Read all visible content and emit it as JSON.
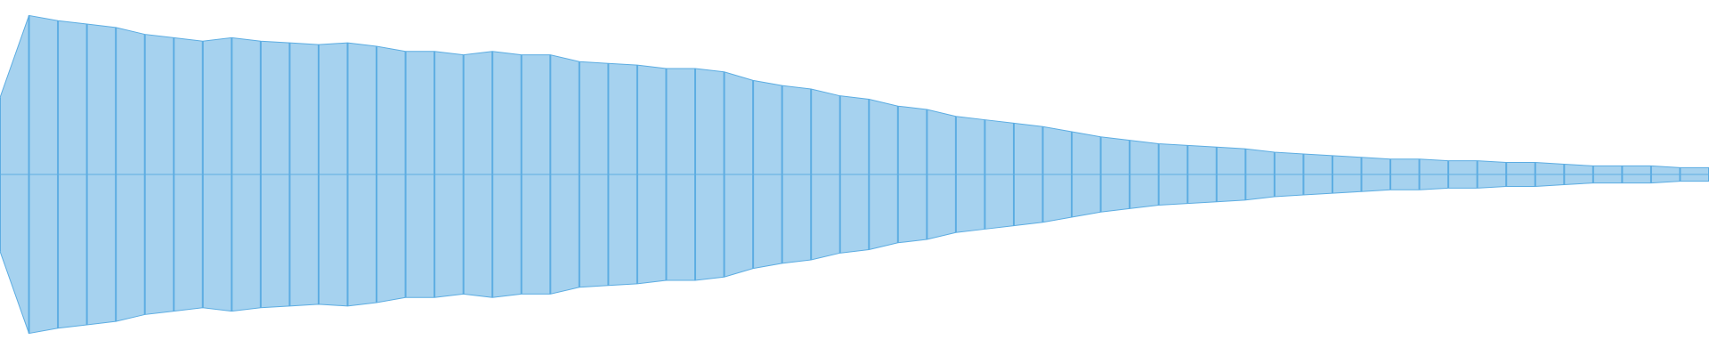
{
  "chart_data": {
    "type": "waveform",
    "color": "#5dade2",
    "ylim": [
      -1,
      1
    ],
    "values": [
      0.45,
      0.93,
      0.9,
      0.88,
      0.86,
      0.82,
      0.8,
      0.78,
      0.8,
      0.78,
      0.77,
      0.76,
      0.77,
      0.75,
      0.72,
      0.72,
      0.7,
      0.72,
      0.7,
      0.7,
      0.66,
      0.65,
      0.64,
      0.62,
      0.62,
      0.6,
      0.55,
      0.52,
      0.5,
      0.46,
      0.44,
      0.4,
      0.38,
      0.34,
      0.32,
      0.3,
      0.28,
      0.25,
      0.22,
      0.2,
      0.18,
      0.17,
      0.16,
      0.15,
      0.13,
      0.12,
      0.11,
      0.1,
      0.09,
      0.09,
      0.08,
      0.08,
      0.07,
      0.07,
      0.06,
      0.05,
      0.05,
      0.05,
      0.04,
      0.04
    ]
  }
}
